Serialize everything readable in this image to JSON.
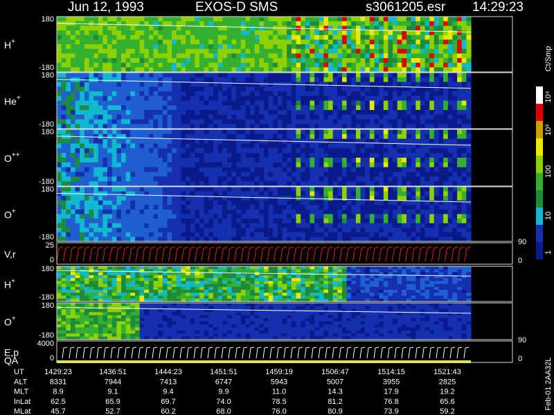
{
  "header": {
    "date": "Jun 12, 1993",
    "instrument": "EXOS-D SMS",
    "file": "s3061205.esr",
    "time": "14:29:23"
  },
  "panels": [
    {
      "label": "H",
      "sup": "+",
      "ticks": [
        "180",
        "-180"
      ]
    },
    {
      "label": "He",
      "sup": "+",
      "ticks": [
        "180",
        "-180"
      ]
    },
    {
      "label": "O",
      "sup": "++",
      "ticks": [
        "180",
        "-180"
      ]
    },
    {
      "label": "O",
      "sup": "+",
      "ticks": [
        "180",
        "-180"
      ]
    },
    {
      "label": "V,r",
      "ticks": [
        "25",
        "0"
      ],
      "right_ticks": [
        "90",
        "0"
      ]
    },
    {
      "label": "H",
      "sup": "+",
      "ticks": [
        "180",
        "-180"
      ]
    },
    {
      "label": "O",
      "sup": "+",
      "ticks": [
        "180",
        "-180"
      ]
    },
    {
      "label": "E,p",
      "label2": "QA",
      "ticks": [
        "4000",
        "0"
      ],
      "right_ticks": [
        "90",
        "0"
      ]
    }
  ],
  "colorbar": {
    "unit": "Ct/Smp",
    "ticks": [
      "1",
      "10",
      "100",
      "10³",
      "10⁴"
    ]
  },
  "table": {
    "rows": [
      {
        "label": "UT",
        "values": [
          "1429:23",
          "1436:51",
          "1444:23",
          "1451:51",
          "1459:19",
          "1506:47",
          "1514:15",
          "1521:43"
        ]
      },
      {
        "label": "ALT",
        "values": [
          "8331",
          "7944",
          "7413",
          "6747",
          "5943",
          "5007",
          "3955",
          "2825"
        ]
      },
      {
        "label": "MLT",
        "values": [
          "8.9",
          "9.1",
          "9.4",
          "9.9",
          "11.0",
          "14.3",
          "17.9",
          "19.2"
        ]
      },
      {
        "label": "InLat",
        "values": [
          "62.5",
          "65.9",
          "69.7",
          "74.0",
          "78.5",
          "81.2",
          "76.8",
          "65.6"
        ]
      },
      {
        "label": "MLat",
        "values": [
          "45.7",
          "52.7",
          "60.2",
          "68.0",
          "76.0",
          "80.9",
          "73.9",
          "59.2"
        ]
      }
    ]
  },
  "footer": "Feb-01 2AA32L"
}
